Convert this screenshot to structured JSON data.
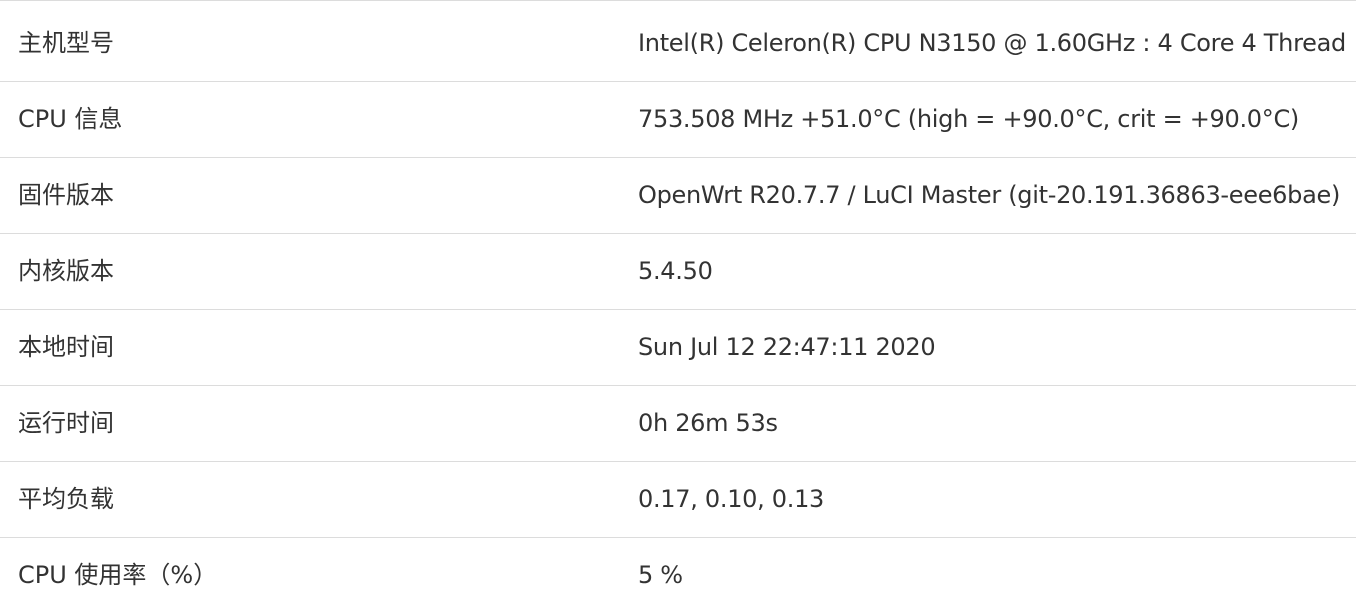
{
  "system_info": {
    "rows": [
      {
        "label": "主机型号",
        "value": "Intel(R) Celeron(R) CPU N3150 @ 1.60GHz : 4 Core 4 Thread"
      },
      {
        "label": "CPU 信息",
        "value": "753.508 MHz +51.0°C (high = +90.0°C, crit = +90.0°C)"
      },
      {
        "label": "固件版本",
        "value": "OpenWrt R20.7.7 / LuCI Master (git-20.191.36863-eee6bae)"
      },
      {
        "label": "内核版本",
        "value": "5.4.50"
      },
      {
        "label": "本地时间",
        "value": "Sun Jul 12 22:47:11 2020"
      },
      {
        "label": "运行时间",
        "value": "0h 26m 53s"
      },
      {
        "label": "平均负载",
        "value": "0.17, 0.10, 0.13"
      },
      {
        "label": "CPU 使用率（%）",
        "value": "5 %"
      }
    ]
  },
  "colors": {
    "text": "#333333",
    "border": "#dcdcdc",
    "background": "#ffffff"
  }
}
